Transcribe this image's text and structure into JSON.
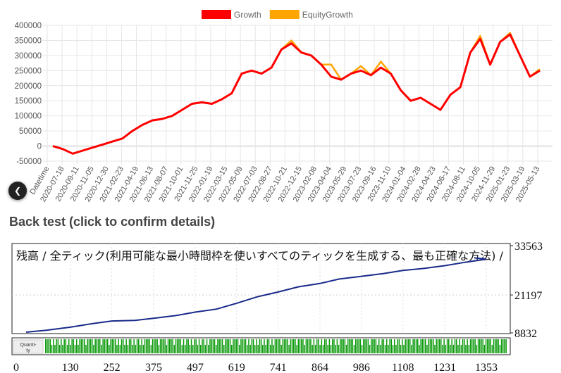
{
  "chart_data": [
    {
      "type": "line",
      "title": "",
      "legend": {
        "placement": "top-center",
        "items": [
          {
            "name": "Growth",
            "color": "#ff0000"
          },
          {
            "name": "EquityGrowth",
            "color": "#ffa500"
          }
        ]
      },
      "ylim": [
        -50000,
        400000
      ],
      "yticks": [
        "400000",
        "350000",
        "300000",
        "250000",
        "200000",
        "150000",
        "100000",
        "50000",
        "0",
        "-50000"
      ],
      "xticks": [
        "Datetime",
        "2020-07-18",
        "2020-09-11",
        "2020-11-05",
        "2020-12-30",
        "2021-02-23",
        "2021-04-19",
        "2021-06-13",
        "2021-08-07",
        "2021-10-01",
        "2021-11-25",
        "2022-01-19",
        "2022-03-15",
        "2022-05-09",
        "2022-07-03",
        "2022-08-27",
        "2022-10-21",
        "2022-12-15",
        "2023-02-08",
        "2023-04-04",
        "2023-05-29",
        "2023-07-23",
        "2023-09-16",
        "2023-11-10",
        "2024-01-04",
        "2024-02-28",
        "2024-04-23",
        "2024-06-17",
        "2024-08-11",
        "2024-10-05",
        "2024-11-29",
        "2025-01-23",
        "2025-03-19",
        "2025-05-13"
      ],
      "grid": true,
      "series": [
        {
          "name": "Growth",
          "color": "#ff0000",
          "values": [
            0,
            -10000,
            -25000,
            -15000,
            -5000,
            5000,
            15000,
            25000,
            50000,
            70000,
            85000,
            90000,
            100000,
            120000,
            140000,
            145000,
            140000,
            155000,
            175000,
            240000,
            250000,
            240000,
            260000,
            320000,
            340000,
            310000,
            300000,
            270000,
            230000,
            220000,
            240000,
            250000,
            235000,
            260000,
            240000,
            185000,
            150000,
            160000,
            140000,
            120000,
            170000,
            195000,
            310000,
            355000,
            270000,
            345000,
            370000,
            300000,
            230000,
            250000
          ]
        },
        {
          "name": "EquityGrowth",
          "color": "#ffa500",
          "values": [
            0,
            -10000,
            -25000,
            -15000,
            -5000,
            5000,
            15000,
            25000,
            50000,
            70000,
            85000,
            90000,
            100000,
            120000,
            140000,
            145000,
            140000,
            155000,
            175000,
            240000,
            250000,
            240000,
            260000,
            320000,
            350000,
            310000,
            300000,
            270000,
            270000,
            220000,
            240000,
            265000,
            235000,
            280000,
            240000,
            185000,
            150000,
            160000,
            140000,
            120000,
            170000,
            195000,
            310000,
            365000,
            270000,
            345000,
            375000,
            300000,
            230000,
            255000
          ]
        }
      ]
    },
    {
      "type": "line",
      "title": "残高 / 全ティック(利用可能な最小時間枠を使いすべてのティックを生成する、最も正確な方法) /",
      "ylim": [
        8832,
        33563
      ],
      "yticks": [
        "33563",
        "21197",
        "8832"
      ],
      "xticks": [
        "0",
        "130",
        "252",
        "375",
        "497",
        "619",
        "741",
        "864",
        "986",
        "1108",
        "1231",
        "1353"
      ],
      "xlim": [
        0,
        1353
      ],
      "grid": true,
      "quantity_label": "Quanti-\nty",
      "series": [
        {
          "name": "",
          "color": "#1a2a8a",
          "x": [
            0,
            60,
            130,
            200,
            252,
            320,
            375,
            440,
            497,
            560,
            619,
            680,
            741,
            800,
            864,
            920,
            986,
            1050,
            1108,
            1170,
            1231,
            1290,
            1353,
            1420
          ],
          "values": [
            8832,
            9400,
            10300,
            11400,
            12100,
            12300,
            12900,
            13700,
            14700,
            15600,
            17300,
            19200,
            20600,
            22100,
            23100,
            24400,
            25200,
            26000,
            26900,
            27500,
            28300,
            29300,
            30200,
            30600
          ]
        }
      ]
    }
  ],
  "section_title": "Back test (click to confirm details)"
}
